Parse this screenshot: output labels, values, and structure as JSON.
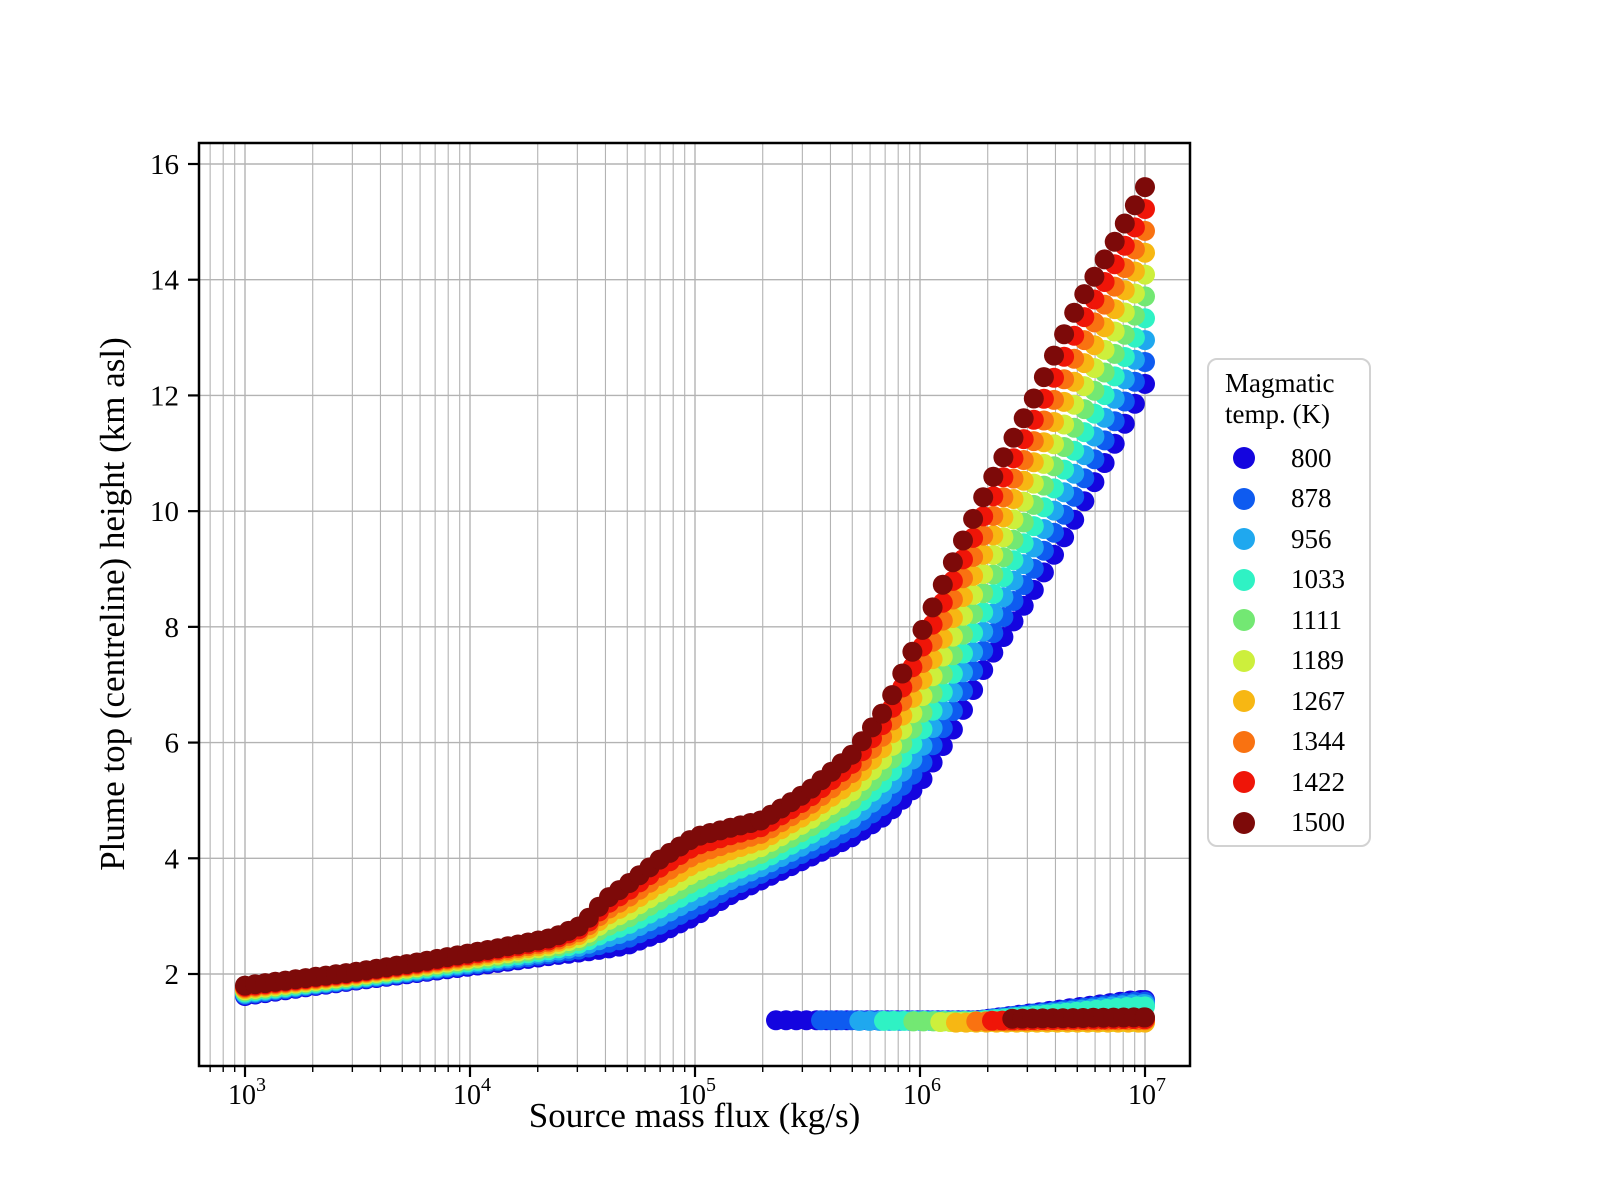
{
  "figure": {
    "background": "#ffffff"
  },
  "chart_data": {
    "type": "scatter",
    "title": "",
    "xlabel": "Source mass flux (kg/s)",
    "ylabel": "Plume top (centreline) height (km asl)",
    "x_scale": "log10",
    "xlim_log10": [
      2.8,
      7.2
    ],
    "ylim_km": [
      0.41,
      16.36
    ],
    "x_major_tick_exponents": [
      3,
      4,
      5,
      6,
      7
    ],
    "x_tick_base": "10",
    "y_ticks": [
      2,
      4,
      6,
      8,
      10,
      12,
      14,
      16
    ],
    "grid": "on",
    "grid_color": "#b3b3b3",
    "axis_color": "#000000",
    "legend": {
      "position": "right-outside",
      "title_lines": [
        "Magmatic",
        "temp. (K)"
      ],
      "border_color": "#d2d2d2"
    },
    "series": [
      {
        "temp": 800,
        "color": "#1405DF",
        "collapse_onset_log10": 5.36,
        "collapse_base_km": 1.2,
        "collapse_rise_km": 0.35
      },
      {
        "temp": 878,
        "color": "#0E5BF0",
        "collapse_onset_log10": 5.56,
        "collapse_base_km": 1.2,
        "collapse_rise_km": 0.32
      },
      {
        "temp": 956,
        "color": "#1FA8EF",
        "collapse_onset_log10": 5.73,
        "collapse_base_km": 1.19,
        "collapse_rise_km": 0.29
      },
      {
        "temp": 1033,
        "color": "#2FF2C4",
        "collapse_onset_log10": 5.84,
        "collapse_base_km": 1.19,
        "collapse_rise_km": 0.25
      },
      {
        "temp": 1111,
        "color": "#73E873",
        "collapse_onset_log10": 5.97,
        "collapse_base_km": 1.18,
        "collapse_rise_km": 0.06
      },
      {
        "temp": 1189,
        "color": "#CDEF3C",
        "collapse_onset_log10": 6.09,
        "collapse_base_km": 1.17,
        "collapse_rise_km": 0.0
      },
      {
        "temp": 1267,
        "color": "#F7B713",
        "collapse_onset_log10": 6.16,
        "collapse_base_km": 1.16,
        "collapse_rise_km": 0.0
      },
      {
        "temp": 1344,
        "color": "#F97211",
        "collapse_onset_log10": 6.25,
        "collapse_base_km": 1.18,
        "collapse_rise_km": 0.02
      },
      {
        "temp": 1422,
        "color": "#EF1508",
        "collapse_onset_log10": 6.32,
        "collapse_base_km": 1.19,
        "collapse_rise_km": 0.03
      },
      {
        "temp": 1500,
        "color": "#7D0A09",
        "collapse_onset_log10": 6.41,
        "collapse_base_km": 1.22,
        "collapse_rise_km": 0.03
      }
    ],
    "main_branch": {
      "logx_anchors": [
        3.0,
        3.25,
        3.5,
        3.75,
        4.0,
        4.2,
        4.37,
        4.5,
        4.6,
        4.7,
        4.85,
        5.0,
        5.15,
        5.3,
        5.5,
        5.7,
        5.85,
        6.0,
        6.15,
        6.3,
        6.5,
        6.7,
        6.85,
        7.0
      ],
      "height_km_at_800K": [
        1.62,
        1.76,
        1.89,
        2.01,
        2.13,
        2.23,
        2.32,
        2.38,
        2.43,
        2.5,
        2.72,
        3.0,
        3.35,
        3.63,
        4.0,
        4.37,
        4.75,
        5.3,
        6.25,
        7.4,
        8.6,
        9.95,
        11.05,
        12.2
      ],
      "height_km_at_1500K": [
        1.8,
        1.92,
        2.04,
        2.19,
        2.36,
        2.5,
        2.63,
        2.85,
        3.28,
        3.55,
        4.0,
        4.37,
        4.52,
        4.66,
        5.15,
        5.8,
        6.6,
        7.85,
        9.15,
        10.4,
        11.9,
        13.55,
        14.55,
        15.6
      ],
      "height_interpolation": "linear in temperature fraction between 800 K and 1500 K anchor curves",
      "x_range_log10": [
        3.0,
        7.0
      ],
      "sample_step_log10": 0.045,
      "marker_radius_px": 10
    },
    "collapse_branch": {
      "description": "flat low-height branch near 1.2 km from each series onset flux up to 1e7 kg/s",
      "rise_start_log10": 6.25,
      "rise_span_log10": 0.7,
      "x_end_log10": 7.0
    }
  }
}
